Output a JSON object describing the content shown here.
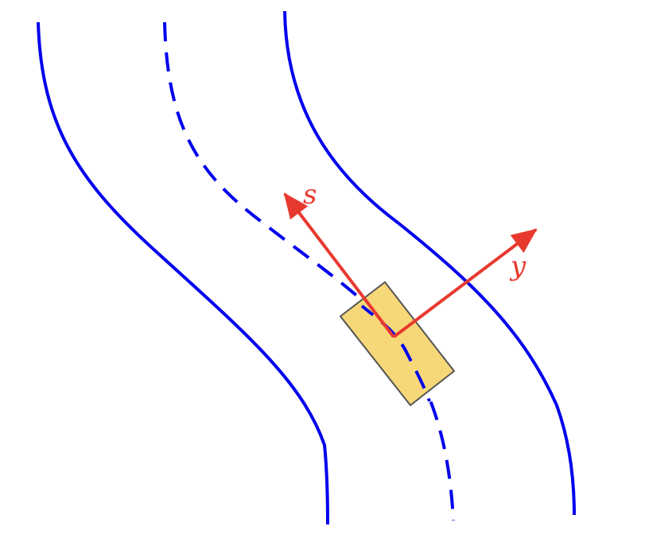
{
  "diagram": {
    "axis_s": {
      "label": "s"
    },
    "axis_y": {
      "label": "y"
    }
  },
  "colors": {
    "road_boundary": "#0000ee",
    "road_centerline": "#0000ee",
    "axis_arrow": "#e8392f",
    "vehicle_fill": "#f7d878",
    "vehicle_stroke": "#555555",
    "background": "#ffffff"
  }
}
